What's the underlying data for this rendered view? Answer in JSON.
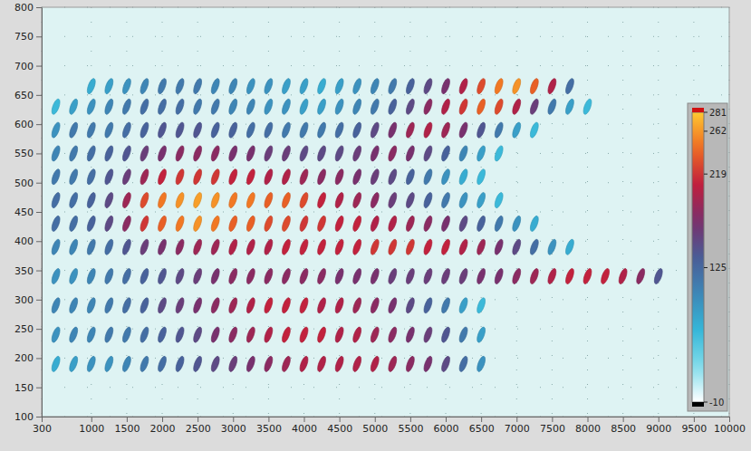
{
  "chart_data": {
    "type": "heatmap",
    "x": [
      500,
      750,
      1000,
      1250,
      1500,
      1750,
      2000,
      2250,
      2500,
      2750,
      3000,
      3250,
      3500,
      3750,
      4000,
      4250,
      4500,
      4750,
      5000,
      5250,
      5500,
      5750,
      6000,
      6250,
      6500,
      6750,
      7000,
      7250,
      7500,
      7750,
      8000,
      8250,
      8500,
      8750,
      9000
    ],
    "y": [
      190,
      240,
      290,
      340,
      390,
      430,
      470,
      510,
      550,
      590,
      630,
      665
    ],
    "values": [
      [
        70,
        80,
        90,
        90,
        100,
        110,
        120,
        130,
        140,
        150,
        160,
        170,
        180,
        190,
        200,
        200,
        200,
        200,
        200,
        190,
        180,
        170,
        150,
        120,
        90,
        null,
        null,
        null,
        null,
        null,
        null,
        null,
        null,
        null,
        null
      ],
      [
        90,
        100,
        100,
        110,
        110,
        120,
        130,
        140,
        150,
        170,
        180,
        190,
        200,
        210,
        210,
        210,
        200,
        200,
        190,
        180,
        170,
        160,
        140,
        110,
        80,
        null,
        null,
        null,
        null,
        null,
        null,
        null,
        null,
        null,
        null
      ],
      [
        100,
        100,
        100,
        110,
        120,
        130,
        150,
        160,
        170,
        180,
        190,
        200,
        210,
        210,
        210,
        200,
        200,
        190,
        180,
        170,
        150,
        130,
        110,
        80,
        60,
        null,
        null,
        null,
        null,
        null,
        null,
        null,
        null,
        null,
        null
      ],
      [
        90,
        90,
        100,
        110,
        120,
        130,
        140,
        150,
        160,
        170,
        180,
        180,
        180,
        180,
        180,
        180,
        170,
        170,
        170,
        160,
        160,
        160,
        160,
        160,
        170,
        170,
        180,
        190,
        200,
        210,
        210,
        210,
        200,
        180,
        140
      ],
      [
        100,
        100,
        110,
        120,
        140,
        160,
        170,
        180,
        190,
        190,
        200,
        200,
        200,
        210,
        210,
        210,
        210,
        210,
        220,
        220,
        220,
        210,
        210,
        200,
        190,
        170,
        150,
        120,
        90,
        70,
        null,
        null,
        null,
        null,
        null
      ],
      [
        120,
        120,
        130,
        150,
        180,
        220,
        240,
        250,
        260,
        250,
        240,
        240,
        230,
        230,
        220,
        220,
        210,
        210,
        200,
        200,
        190,
        180,
        170,
        150,
        130,
        110,
        90,
        70,
        null,
        null,
        null,
        null,
        null,
        null,
        null
      ],
      [
        120,
        120,
        130,
        150,
        190,
        230,
        250,
        260,
        265,
        260,
        250,
        250,
        240,
        240,
        230,
        210,
        200,
        190,
        180,
        160,
        150,
        130,
        110,
        90,
        80,
        60,
        null,
        null,
        null,
        null,
        null,
        null,
        null,
        null,
        null
      ],
      [
        110,
        110,
        120,
        140,
        160,
        190,
        210,
        220,
        220,
        220,
        210,
        210,
        200,
        200,
        190,
        180,
        180,
        170,
        160,
        150,
        130,
        110,
        90,
        70,
        60,
        null,
        null,
        null,
        null,
        null,
        null,
        null,
        null,
        null,
        null
      ],
      [
        100,
        110,
        120,
        130,
        140,
        160,
        170,
        180,
        180,
        180,
        170,
        170,
        160,
        160,
        150,
        150,
        150,
        160,
        170,
        180,
        170,
        150,
        130,
        100,
        80,
        60,
        null,
        null,
        null,
        null,
        null,
        null,
        null,
        null,
        null
      ],
      [
        90,
        110,
        110,
        110,
        120,
        130,
        140,
        140,
        140,
        130,
        130,
        120,
        120,
        110,
        110,
        110,
        120,
        130,
        150,
        170,
        190,
        200,
        190,
        170,
        140,
        110,
        80,
        60,
        null,
        null,
        null,
        null,
        null,
        null,
        null
      ],
      [
        60,
        80,
        90,
        100,
        110,
        120,
        120,
        120,
        110,
        110,
        100,
        100,
        90,
        90,
        80,
        80,
        90,
        100,
        110,
        130,
        150,
        180,
        200,
        220,
        240,
        230,
        200,
        160,
        110,
        80,
        60,
        null,
        null,
        null,
        null
      ],
      [
        null,
        null,
        70,
        80,
        90,
        100,
        110,
        110,
        110,
        100,
        100,
        90,
        90,
        80,
        80,
        70,
        80,
        90,
        100,
        110,
        130,
        150,
        170,
        200,
        230,
        250,
        260,
        240,
        200,
        120,
        null,
        null,
        null,
        null,
        null
      ]
    ],
    "xlim": [
      300,
      10000
    ],
    "ylim": [
      100,
      800
    ],
    "xticks": [
      300,
      1000,
      1500,
      2000,
      2500,
      3000,
      3500,
      4000,
      4500,
      5000,
      5500,
      6000,
      6500,
      7000,
      7500,
      8000,
      8500,
      9000,
      9500,
      10000
    ],
    "yticks": [
      100,
      150,
      200,
      250,
      300,
      350,
      400,
      450,
      500,
      550,
      600,
      650,
      700,
      750,
      800
    ],
    "grid": true,
    "colorbar": {
      "range": [
        -10,
        281
      ],
      "ticks": [
        -10,
        125,
        219,
        262,
        281
      ]
    }
  }
}
